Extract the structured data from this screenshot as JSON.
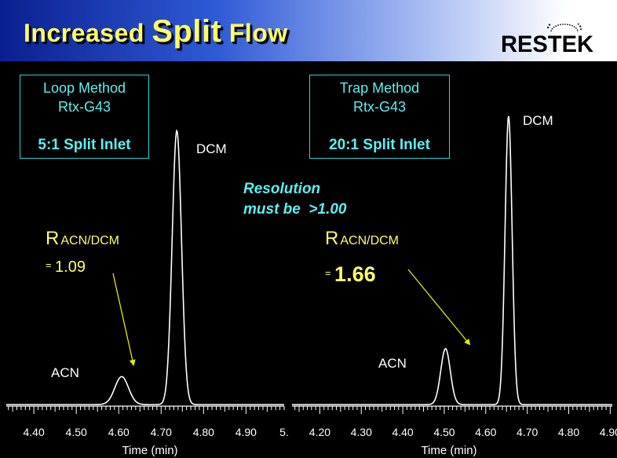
{
  "header": {
    "title_prefix": "Increased ",
    "title_big": "Split",
    "title_suffix": " Flow",
    "logo_text": "RESTEK"
  },
  "note": {
    "line1": "Resolution",
    "line2": "must be  >1.00"
  },
  "colors": {
    "trace": "#ffffff",
    "box_border": "#2dd4d4",
    "box_text": "#5cf0f0",
    "label_yellow": "#ffff66",
    "arrow": "#e8e800"
  },
  "chart_data": [
    {
      "type": "line",
      "method": "Loop Method",
      "column": "Rtx-G43",
      "inlet": "5:1 Split Inlet",
      "resolution_label": "R",
      "resolution_sub": "ACN/DCM",
      "resolution_eq": "=",
      "resolution_value": "1.09",
      "xlabel": "Time (min)",
      "xlim": [
        4.335,
        4.99
      ],
      "ylim": [
        0,
        100
      ],
      "tick_labels": [
        "4.40",
        "4.50",
        "4.60",
        "4.70",
        "4.80",
        "4.90",
        "5."
      ],
      "tick_values": [
        4.4,
        4.5,
        4.6,
        4.7,
        4.8,
        4.9,
        4.99
      ],
      "peaks": [
        {
          "name": "ACN",
          "x": 4.607,
          "height": 9.5
        },
        {
          "name": "DCM",
          "x": 4.737,
          "height": 93
        }
      ]
    },
    {
      "type": "line",
      "method": "Trap Method",
      "column": "Rtx-G43",
      "inlet": "20:1 Split Inlet",
      "resolution_label": "R",
      "resolution_sub": "ACN/DCM",
      "resolution_eq": "=",
      "resolution_value": "1.66",
      "xlabel": "Time (min)",
      "xlim": [
        4.133,
        4.905
      ],
      "ylim": [
        0,
        100
      ],
      "tick_labels": [
        "4.20",
        "4.30",
        "4.40",
        "4.50",
        "4.60",
        "4.70",
        "4.80",
        "4.90"
      ],
      "tick_values": [
        4.2,
        4.3,
        4.4,
        4.5,
        4.6,
        4.7,
        4.8,
        4.9
      ],
      "peaks": [
        {
          "name": "ACN",
          "x": 4.503,
          "height": 19
        },
        {
          "name": "DCM",
          "x": 4.655,
          "height": 98
        }
      ]
    }
  ]
}
